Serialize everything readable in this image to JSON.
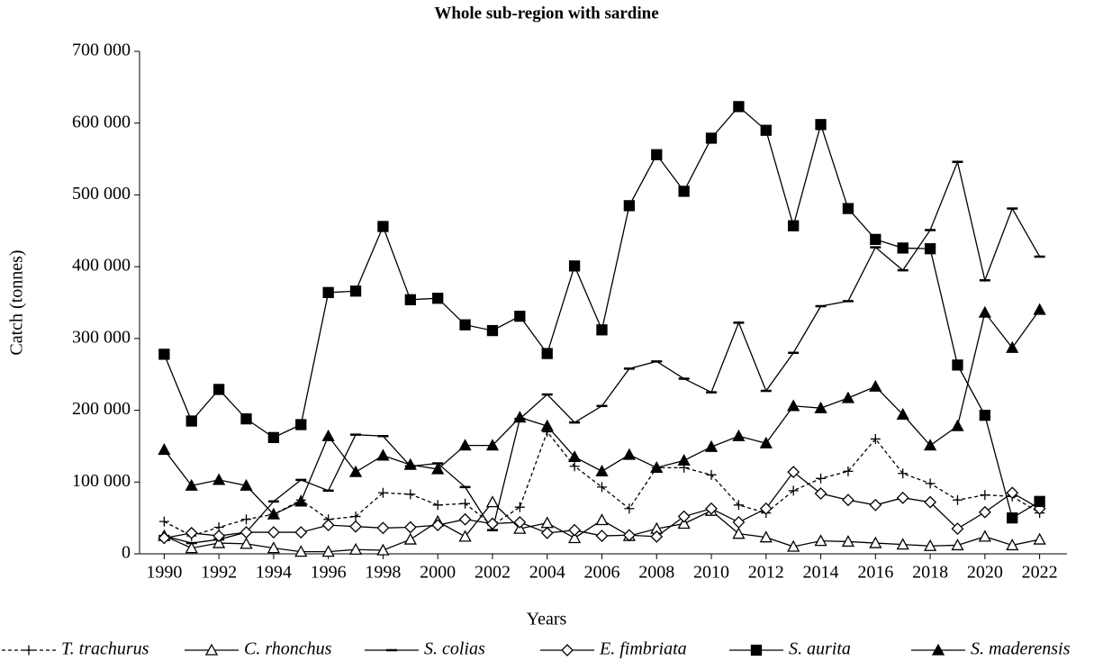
{
  "chart_data": {
    "type": "line",
    "title": "Whole sub-region with sardine",
    "x_label": "Years",
    "y_label": "Catch (tonnes)",
    "x": [
      1990,
      1991,
      1992,
      1993,
      1994,
      1995,
      1996,
      1997,
      1998,
      1999,
      2000,
      2001,
      2002,
      2003,
      2004,
      2005,
      2006,
      2007,
      2008,
      2009,
      2010,
      2011,
      2012,
      2013,
      2014,
      2015,
      2016,
      2017,
      2018,
      2019,
      2020,
      2021,
      2022
    ],
    "xlim": [
      1989.1,
      2023.0
    ],
    "xticks": [
      1990,
      1992,
      1994,
      1996,
      1998,
      2000,
      2002,
      2004,
      2006,
      2008,
      2010,
      2012,
      2014,
      2016,
      2018,
      2020,
      2022
    ],
    "ylim": [
      0,
      700000
    ],
    "yticks": [
      0,
      {
        "value": 100000,
        "label": "100 000"
      },
      {
        "value": 200000,
        "label": "200 000"
      },
      {
        "value": 300000,
        "label": "300 000"
      },
      {
        "value": 400000,
        "label": "400 000"
      },
      {
        "value": 500000,
        "label": "500 000"
      },
      {
        "value": 600000,
        "label": "600 000"
      },
      {
        "value": 700000,
        "label": "700 000"
      }
    ],
    "grid": false,
    "legend": "bottom",
    "series": [
      {
        "name": "T. trachurus",
        "color": "#000000",
        "marker": "plus",
        "dashed": true,
        "values": [
          45000,
          25000,
          37000,
          48000,
          55000,
          75000,
          48000,
          52000,
          85000,
          83000,
          68000,
          70000,
          40000,
          65000,
          170000,
          122000,
          93000,
          63000,
          120000,
          120000,
          110000,
          68000,
          57000,
          88000,
          105000,
          115000,
          160000,
          112000,
          98000,
          75000,
          82000,
          80000,
          57000
        ]
      },
      {
        "name": "C. rhonchus",
        "color": "#000000",
        "marker": "triangle-open",
        "dashed": false,
        "values": [
          25000,
          8000,
          15000,
          14000,
          8000,
          3000,
          3000,
          6000,
          5000,
          20000,
          45000,
          24000,
          72000,
          35000,
          43000,
          22000,
          47000,
          25000,
          35000,
          42000,
          60000,
          28000,
          23000,
          10000,
          18000,
          17000,
          15000,
          13000,
          11000,
          12000,
          24000,
          12000,
          20000
        ]
      },
      {
        "name": "S. colias",
        "color": "#000000",
        "marker": "dash",
        "dashed": false,
        "values": [
          25000,
          15000,
          20000,
          30000,
          73000,
          103000,
          88000,
          166000,
          164000,
          122000,
          126000,
          93000,
          33000,
          188000,
          222000,
          183000,
          206000,
          258000,
          268000,
          244000,
          225000,
          322000,
          227000,
          280000,
          345000,
          352000,
          427000,
          395000,
          451000,
          546000,
          381000,
          481000,
          414000
        ]
      },
      {
        "name": "E. fimbriata",
        "color": "#000000",
        "marker": "diamond-open",
        "dashed": false,
        "values": [
          22000,
          29000,
          25000,
          30000,
          30000,
          30000,
          40000,
          38000,
          36000,
          37000,
          40000,
          48000,
          42000,
          44000,
          29000,
          33000,
          25000,
          26000,
          24000,
          52000,
          63000,
          44000,
          63000,
          114000,
          84000,
          75000,
          68000,
          78000,
          72000,
          35000,
          58000,
          85000,
          63000
        ]
      },
      {
        "name": "S. aurita",
        "color": "#000000",
        "marker": "square",
        "dashed": false,
        "values": [
          278000,
          185000,
          229000,
          188000,
          162000,
          180000,
          364000,
          366000,
          456000,
          354000,
          356000,
          319000,
          311000,
          331000,
          279000,
          401000,
          312000,
          485000,
          556000,
          505000,
          579000,
          623000,
          590000,
          457000,
          598000,
          481000,
          438000,
          426000,
          425000,
          263000,
          193000,
          50000,
          73000
        ]
      },
      {
        "name": "S. maderensis",
        "color": "#000000",
        "marker": "triangle",
        "dashed": false,
        "values": [
          145000,
          95000,
          103000,
          95000,
          55000,
          73000,
          164000,
          114000,
          137000,
          124000,
          118000,
          151000,
          151000,
          190000,
          178000,
          135000,
          115000,
          138000,
          120000,
          130000,
          149000,
          164000,
          154000,
          206000,
          203000,
          217000,
          233000,
          194000,
          151000,
          178000,
          336000,
          287000,
          340000
        ]
      }
    ]
  }
}
